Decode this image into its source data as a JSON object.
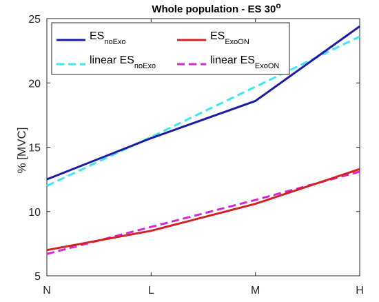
{
  "chart_data": {
    "type": "line",
    "title": {
      "main": "Whole population - ES 30",
      "superscript": "o"
    },
    "ylabel": "% [MVC]",
    "xlabel": "",
    "categories": [
      "N",
      "L",
      "M",
      "H"
    ],
    "ylim": [
      5,
      25
    ],
    "yticks": [
      5,
      10,
      15,
      20,
      25
    ],
    "grid": false,
    "legend_position": "top",
    "series": [
      {
        "name": {
          "base": "ES",
          "sub": "noExo"
        },
        "color": "#1a1aa6",
        "dash": "solid",
        "values": [
          12.5,
          15.7,
          18.6,
          24.4
        ]
      },
      {
        "name": {
          "base": "ES",
          "sub": "ExoON"
        },
        "color": "#d42020",
        "dash": "solid",
        "values": [
          7.0,
          8.5,
          10.6,
          13.3
        ]
      },
      {
        "name": {
          "base": "linear ES",
          "sub": "noExo"
        },
        "color": "#3ee8f0",
        "dash": "dashed",
        "values": [
          12.0,
          15.8,
          19.7,
          23.6
        ]
      },
      {
        "name": {
          "base": "linear ES",
          "sub": "ExoON"
        },
        "color": "#d426d4",
        "dash": "dashed",
        "values": [
          6.7,
          8.8,
          10.9,
          13.1
        ]
      }
    ]
  }
}
